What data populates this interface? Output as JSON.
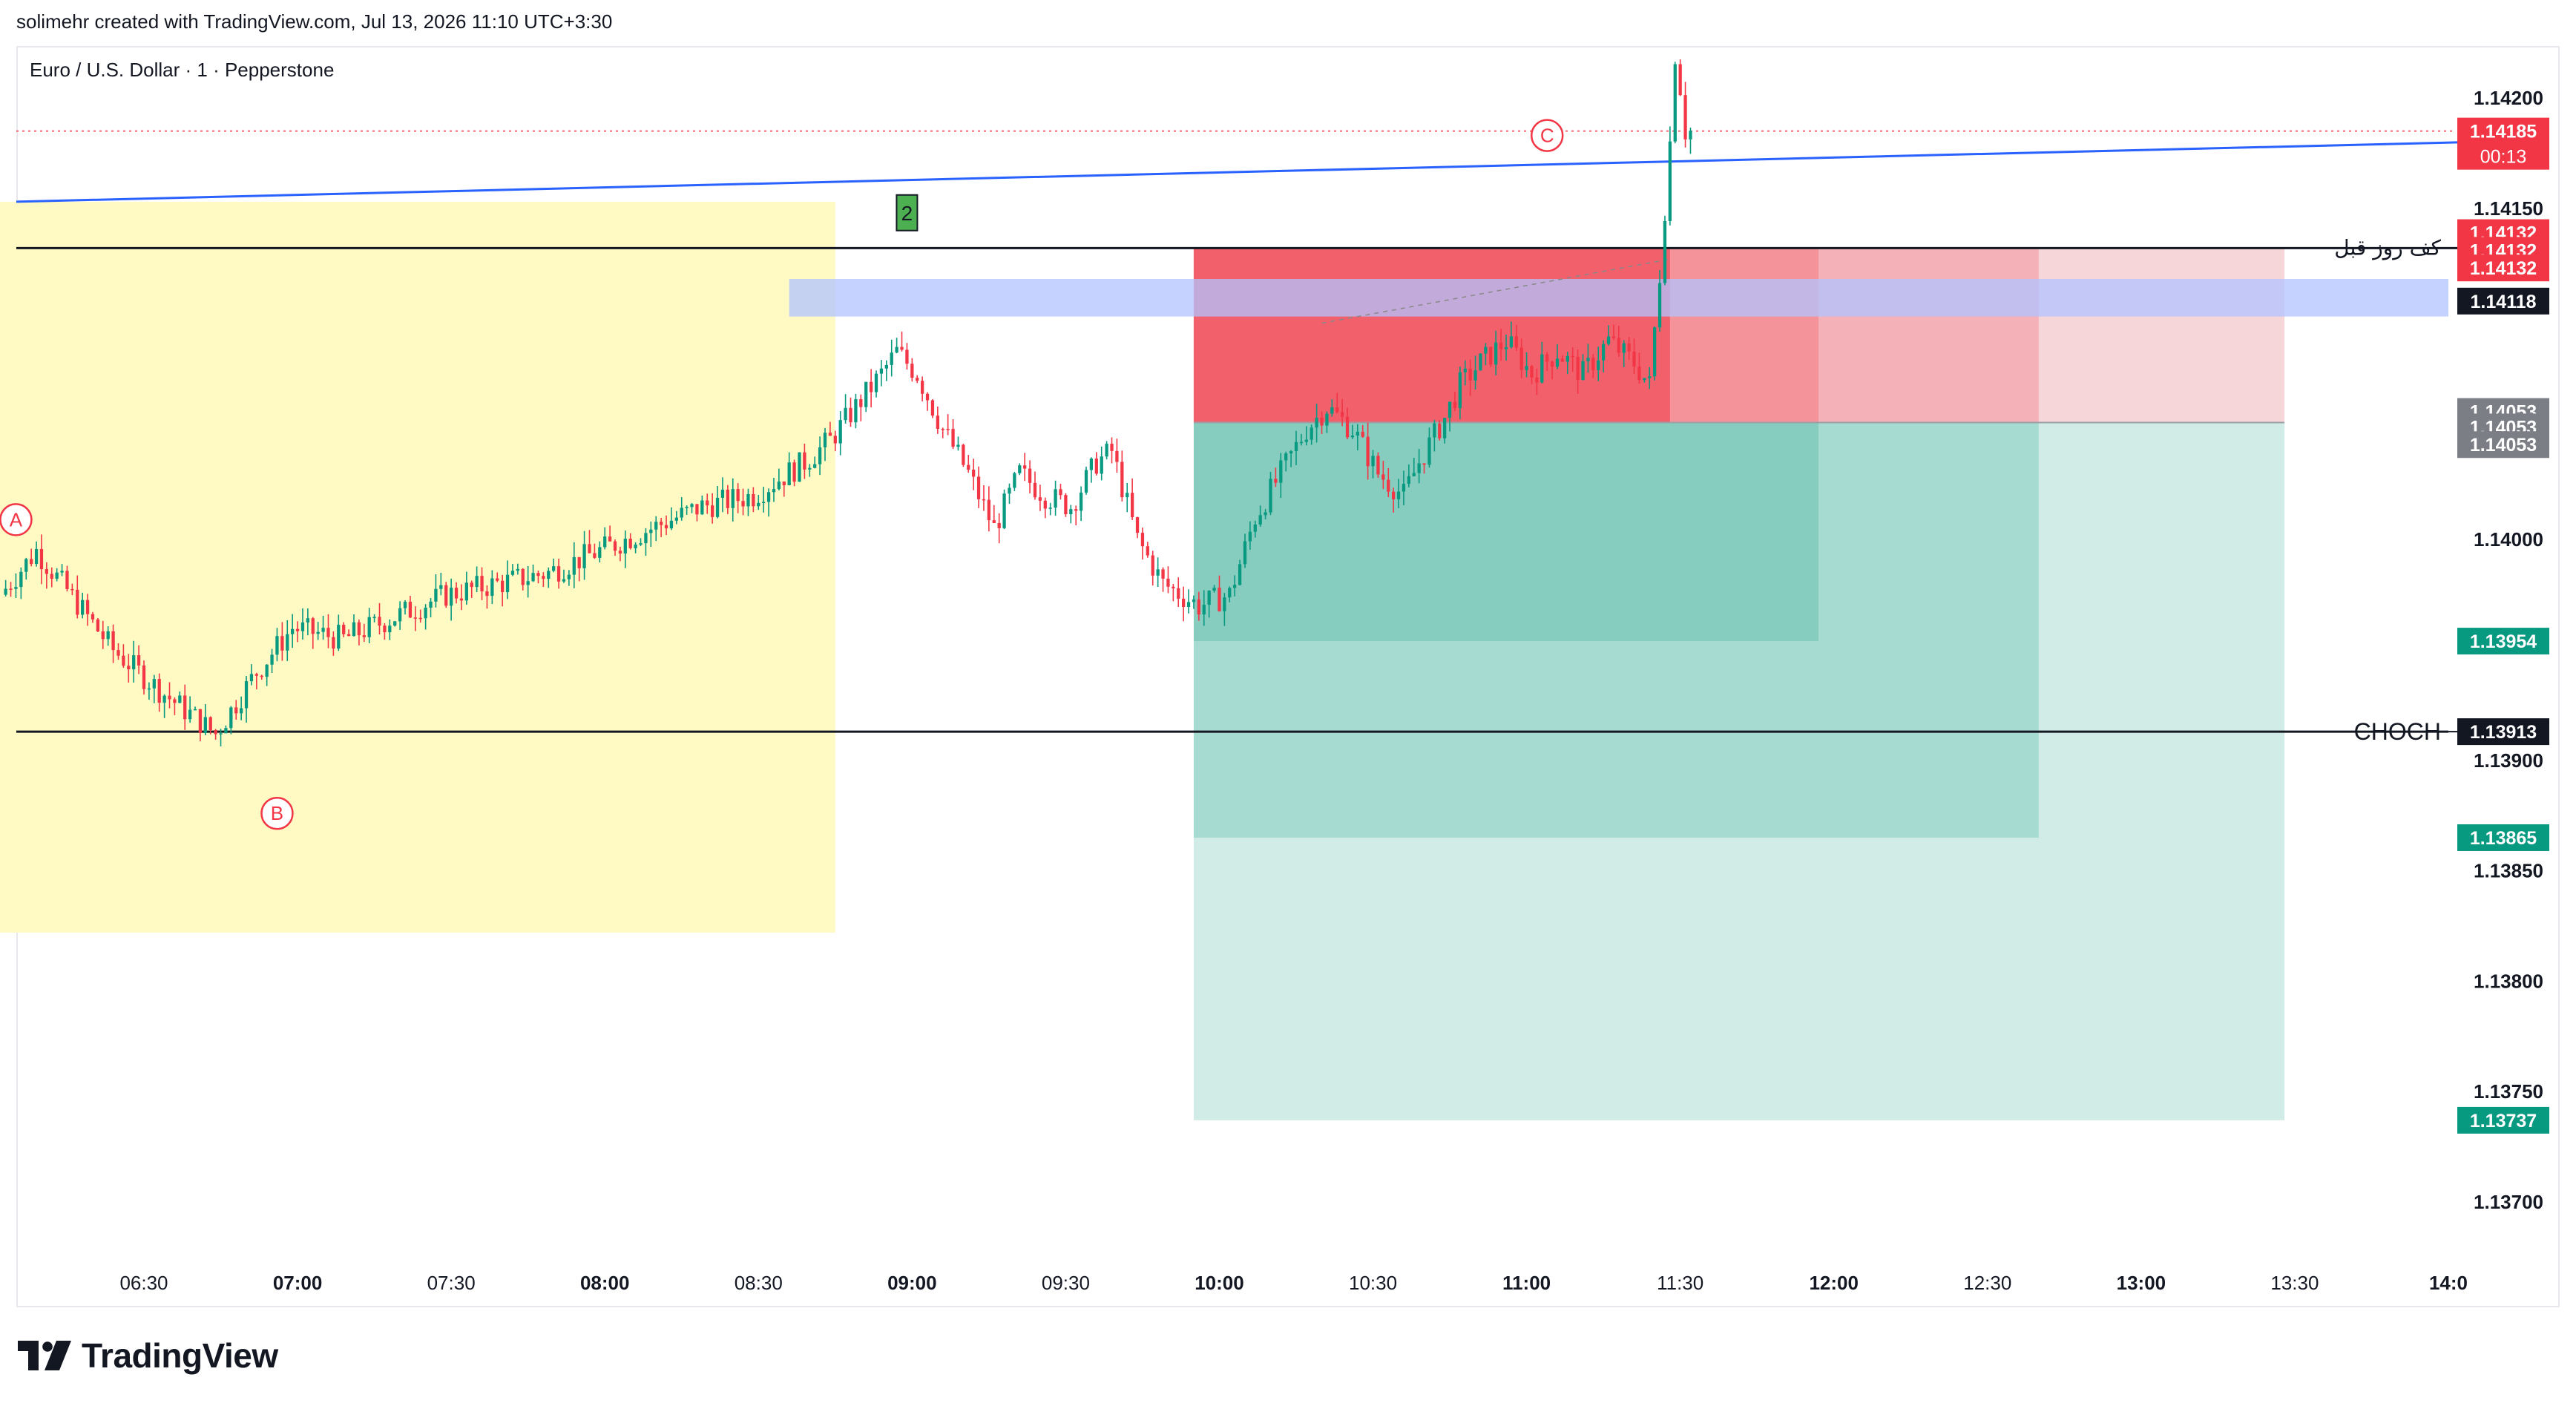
{
  "header": {
    "attribution": "solimehr created with TradingView.com, Jul 13, 2026 11:10 UTC+3:30"
  },
  "symbol_line": "Euro / U.S. Dollar · 1 · Pepperstone",
  "brand": {
    "name": "TradingView"
  },
  "colors": {
    "bull": "#089981",
    "bear": "#f23645",
    "trendline": "#2962ff",
    "yellow_zone": "#fff9c4",
    "blue_zone": "#b2c3ff",
    "red_zone": "#f23645",
    "green_zone": "#089981"
  },
  "annotations": {
    "wave_a": "A",
    "wave_b": "B",
    "wave_c": "C",
    "marker_2": "2",
    "prev_day_low_label": "کف روز قبل",
    "choch_label": "CHOCH"
  },
  "price_tags": {
    "last": "1.14185",
    "countdown": "00:13",
    "red1": "1.14132",
    "red2": "1.14132",
    "red3": "1.14132",
    "black_top": "1.14118",
    "grey1": "1.14053",
    "grey2": "1.14053",
    "grey3": "1.14053",
    "green1": "1.13954",
    "choch": "1.13913",
    "green2": "1.13865",
    "green3": "1.13737"
  },
  "chart_data": {
    "type": "candlestick",
    "title": "Euro / U.S. Dollar · 1 · Pepperstone",
    "y_ticks": [
      "1.14200",
      "1.14150",
      "1.14000",
      "1.13900",
      "1.13850",
      "1.13800",
      "1.13750",
      "1.13700"
    ],
    "y_tick_values": [
      1.142,
      1.1415,
      1.14,
      1.139,
      1.1385,
      1.138,
      1.1375,
      1.137
    ],
    "x_ticks": [
      "06:30",
      "07:00",
      "07:30",
      "08:00",
      "08:30",
      "09:00",
      "09:30",
      "10:00",
      "10:30",
      "11:00",
      "11:30",
      "12:00",
      "12:30",
      "13:00",
      "13:30",
      "14:0"
    ],
    "x_tick_bold": [
      false,
      true,
      false,
      true,
      false,
      true,
      false,
      true,
      false,
      true,
      false,
      true,
      false,
      true,
      false,
      true
    ],
    "ylim": [
      1.1366,
      1.14255
    ],
    "x_range_minutes": [
      363,
      844
    ],
    "price_path": [
      [
        363,
        1.13975
      ],
      [
        370,
        1.13995
      ],
      [
        375,
        1.1398
      ],
      [
        385,
        1.1395
      ],
      [
        395,
        1.1393
      ],
      [
        405,
        1.13912
      ],
      [
        413,
        1.1394
      ],
      [
        420,
        1.1396
      ],
      [
        430,
        1.13955
      ],
      [
        440,
        1.13965
      ],
      [
        450,
        1.13975
      ],
      [
        460,
        1.1398
      ],
      [
        470,
        1.13985
      ],
      [
        480,
        1.13995
      ],
      [
        490,
        1.14005
      ],
      [
        500,
        1.14015
      ],
      [
        510,
        1.1402
      ],
      [
        520,
        1.14035
      ],
      [
        525,
        1.14045
      ],
      [
        530,
        1.1406
      ],
      [
        535,
        1.14075
      ],
      [
        538,
        1.14085
      ],
      [
        542,
        1.14075
      ],
      [
        547,
        1.1405
      ],
      [
        552,
        1.1403
      ],
      [
        557,
        1.14005
      ],
      [
        562,
        1.1403
      ],
      [
        567,
        1.1402
      ],
      [
        572,
        1.14015
      ],
      [
        577,
        1.14035
      ],
      [
        580,
        1.1404
      ],
      [
        585,
        1.14
      ],
      [
        590,
        1.1398
      ],
      [
        597,
        1.1397
      ],
      [
        603,
        1.13975
      ],
      [
        608,
        1.1401
      ],
      [
        613,
        1.1403
      ],
      [
        618,
        1.1405
      ],
      [
        622,
        1.1406
      ],
      [
        627,
        1.1405
      ],
      [
        632,
        1.1403
      ],
      [
        637,
        1.1402
      ],
      [
        640,
        1.14035
      ],
      [
        645,
        1.14055
      ],
      [
        648,
        1.1407
      ],
      [
        652,
        1.1408
      ],
      [
        657,
        1.1409
      ],
      [
        662,
        1.14075
      ],
      [
        667,
        1.14085
      ],
      [
        672,
        1.14075
      ],
      [
        677,
        1.1409
      ],
      [
        682,
        1.1408
      ],
      [
        685,
        1.1407
      ],
      [
        687,
        1.1412
      ],
      [
        688,
        1.1415
      ],
      [
        689,
        1.1418
      ],
      [
        690,
        1.1422
      ],
      [
        691,
        1.14205
      ],
      [
        692,
        1.14185
      ]
    ],
    "levels": [
      {
        "name": "کف روز قبل",
        "price": 1.14132
      },
      {
        "name": "CHOCH",
        "price": 1.13913
      }
    ],
    "zones": [
      {
        "type": "yellow",
        "from_time": "06:00",
        "to_time": "08:45",
        "price_top": 1.14153,
        "price_bottom": 1.13822
      },
      {
        "type": "blue",
        "from_time": "08:30",
        "to_time": "14:00",
        "price_top": 1.14118,
        "price_bottom": 1.14101
      },
      {
        "type": "short-position",
        "entry": 1.14053,
        "stop": 1.14132,
        "targets": [
          1.13954,
          1.13865,
          1.13737
        ]
      }
    ],
    "trendline": {
      "from": [
        360,
        1.14153
      ],
      "to": [
        844,
        1.1418
      ]
    },
    "grid": false
  }
}
